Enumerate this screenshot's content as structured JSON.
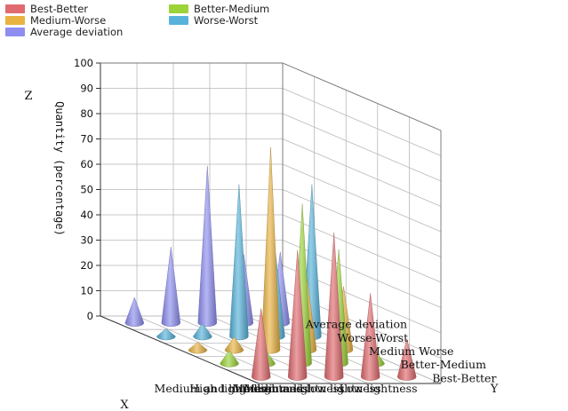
{
  "chart_data": {
    "type": "3d-cone",
    "title": "",
    "x_axis": {
      "label": "X",
      "categories": [
        "High lightness",
        "Medium and high lightness",
        "Medium lightness",
        "Medium and low lightness",
        "Low lightness"
      ]
    },
    "y_axis": {
      "label": "Y",
      "categories": [
        "Best-Better",
        "Better-Medium",
        "Medium Worse",
        "Worse-Worst",
        "Average deviation"
      ]
    },
    "z_axis": {
      "label": "Z",
      "title": "Quantity (percentage)",
      "range": [
        0,
        100
      ],
      "ticks": [
        0,
        10,
        20,
        30,
        40,
        50,
        60,
        70,
        80,
        90,
        100
      ]
    },
    "grid": true,
    "legend": "top-left",
    "series": [
      {
        "name": "Best-Better",
        "color": "#e06b6f",
        "values": [
          27,
          50,
          57,
          33,
          15
        ]
      },
      {
        "name": "Better-Medium",
        "color": "#9bd338",
        "values": [
          5,
          5,
          63,
          45,
          5
        ]
      },
      {
        "name": "Medium-Worse",
        "color": "#e9b342",
        "values": [
          3,
          5,
          80,
          28,
          25
        ]
      },
      {
        "name": "Worse-Worst",
        "color": "#58b3dc",
        "values": [
          3,
          5,
          60,
          33,
          60
        ]
      },
      {
        "name": "Average deviation",
        "color": "#8d8ef0",
        "values": [
          10,
          30,
          62,
          27,
          28
        ]
      }
    ]
  }
}
